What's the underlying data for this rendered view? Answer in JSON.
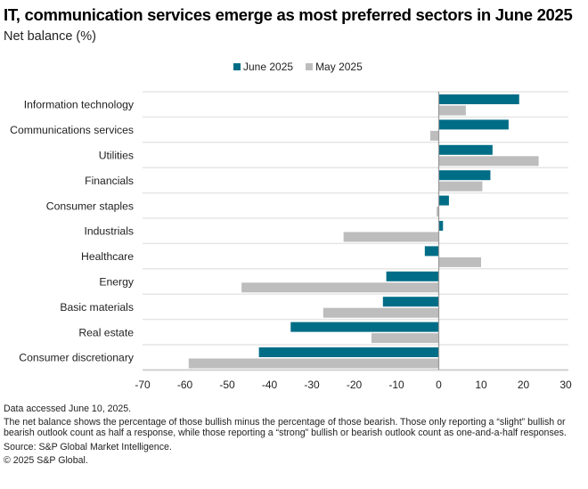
{
  "header": {
    "title": "IT, communication services emerge as most preferred sectors in June 2025",
    "subtitle": "Net balance (%)"
  },
  "footer": {
    "accessed": "Data accessed June 10, 2025.",
    "note": "The net balance shows the percentage of those bullish minus the percentage of those bearish. Those only reporting a “slight” bullish or bearish outlook count as half a response, while those reporting a “strong” bullish or bearish outlook count as one-and-a-half responses.",
    "source": "Source: S&P Global Market Intelligence.",
    "copyright": "© 2025 S&P Global."
  },
  "chart_data": {
    "type": "bar",
    "orientation": "horizontal",
    "title": "IT, communication services emerge as most preferred sectors in June 2025",
    "subtitle": "Net balance (%)",
    "xlabel": "",
    "ylabel": "",
    "xlim": [
      -70,
      30
    ],
    "xticks": [
      -70,
      -60,
      -50,
      -40,
      -30,
      -20,
      -10,
      0,
      10,
      20,
      30
    ],
    "grid": "horizontal separators between categories",
    "legend_position": "top-center",
    "categories": [
      "Information technology",
      "Communications services",
      "Utilities",
      "Financials",
      "Consumer staples",
      "Industrials",
      "Healthcare",
      "Energy",
      "Basic materials",
      "Real estate",
      "Consumer discretionary"
    ],
    "series": [
      {
        "name": "June 2025",
        "color": "#006D87",
        "values": [
          19.0,
          16.5,
          12.7,
          12.2,
          2.4,
          1.0,
          -3.3,
          -12.4,
          -13.2,
          -35.0,
          -42.5
        ]
      },
      {
        "name": "May 2025",
        "color": "#BDBDBD",
        "values": [
          6.4,
          -2.0,
          23.6,
          10.3,
          -0.5,
          -22.5,
          10.0,
          -46.6,
          -27.3,
          -15.9,
          -59.1
        ]
      }
    ]
  }
}
